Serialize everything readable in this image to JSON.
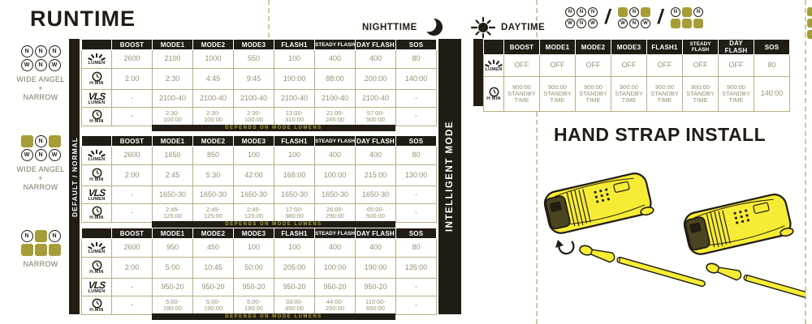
{
  "runtime": {
    "title": "RUNTIME"
  },
  "legend": {
    "nighttime": "NIGHTTIME",
    "daytime": "DAYTIME"
  },
  "columns": [
    "BOOST",
    "MODE1",
    "MODE2",
    "MODE3",
    "FLASH1",
    "STEADY FLASH",
    "DAY FLASH",
    "SOS"
  ],
  "row_icons": [
    {
      "name": "lumen",
      "label": "LUMEN"
    },
    {
      "name": "clock",
      "label": "H:MIN"
    },
    {
      "name": "vls",
      "label": "LUMEN",
      "logo": "VLS"
    },
    {
      "name": "clock",
      "label": "H:MIN"
    }
  ],
  "side_bars": {
    "left": "DEFAULT / NORMAL",
    "right": "INTELLIGENT MODE"
  },
  "beam_groups": [
    {
      "grid": [
        [
          "N",
          "N",
          "N"
        ],
        [
          "W",
          "N",
          "W"
        ]
      ],
      "label": "WIDE ANGEL\n+\nNARROW"
    },
    {
      "grid": [
        [
          "SQ",
          "N",
          "SQ"
        ],
        [
          "W",
          "N",
          "W"
        ]
      ],
      "label": "WIDE ANGEL\n+\nNARROW"
    },
    {
      "grid": [
        [
          "N",
          "SQ",
          "N"
        ],
        [
          "SQ",
          "SQ",
          "SQ"
        ]
      ],
      "label": "NARROW"
    }
  ],
  "tables": [
    {
      "rows": [
        [
          "2600",
          "2100",
          "1000",
          "550",
          "100",
          "400",
          "400",
          "80"
        ],
        [
          "2:00",
          "2:30",
          "4:45",
          "9:45",
          "190:00",
          "88:00",
          "200:00",
          "140:00"
        ],
        [
          "-",
          "2100-40",
          "2100-40",
          "2100-40",
          "2100-40",
          "2100-40",
          "2100-40",
          "-"
        ],
        [
          "-",
          "2:30-\n100:00",
          "2:30-\n100:00",
          "2:30-\n100:00",
          "13:00-\n310:00",
          "21:00-\n245:00",
          "57:00-\n500:00",
          "-"
        ]
      ],
      "footer": "DEPENDS ON MODE LUMENS"
    },
    {
      "rows": [
        [
          "2600",
          "1650",
          "850",
          "100",
          "100",
          "400",
          "400",
          "80"
        ],
        [
          "2:00",
          "2:45",
          "5:30",
          "42:00",
          "168:00",
          "100:00",
          "215:00",
          "130:00"
        ],
        [
          "-",
          "1650-30",
          "1650-30",
          "1650-30",
          "1650-30",
          "1650-30",
          "1650-30",
          "-"
        ],
        [
          "-",
          "2:45-\n125:00",
          "2:45-\n125:00",
          "2:45-\n125:00",
          "17:00-\n380:00",
          "26:00-\n290:00",
          "65:00-\n500:00",
          "-"
        ]
      ],
      "footer": "DEPENDS ON MODE LUMENS"
    },
    {
      "rows": [
        [
          "2600",
          "950",
          "450",
          "100",
          "100",
          "400",
          "400",
          "80"
        ],
        [
          "2:00",
          "5:00",
          "10:45",
          "50:00",
          "205:00",
          "100:00",
          "190:00",
          "135:00"
        ],
        [
          "-",
          "950-20",
          "950-20",
          "950-20",
          "950-20",
          "950-20",
          "950-20",
          "-"
        ],
        [
          "-",
          "5:00-\n190:00",
          "5:00-\n190:00",
          "5:00-\n190:00",
          "33:00-\n450:00",
          "44:00-\n290:00",
          "110:00-\n650:00",
          "-"
        ]
      ],
      "footer": "DEPENDS ON MODE LUMENS"
    }
  ],
  "intelligent_table": {
    "rows": [
      [
        "OFF",
        "OFF",
        "OFF",
        "OFF",
        "OFF",
        "OFF",
        "OFF",
        "80"
      ],
      [
        "900:00\nSTANDBY\nTIME",
        "900:00\nSTANDBY\nTIME",
        "900:00\nSTANDBY\nTIME",
        "900:00\nSTANDBY\nTIME",
        "900:00\nSTANDBY\nTIME",
        "900:00\nSTANDBY\nTIME",
        "900:00\nSTANDBY\nTIME",
        "140:00"
      ]
    ]
  },
  "hand_strap": {
    "title": "HAND STRAP INSTALL"
  },
  "colors": {
    "ink": "#211c14",
    "khaki": "#9a9072",
    "olive": "#ada43a",
    "yellow": "#f6ec35"
  }
}
